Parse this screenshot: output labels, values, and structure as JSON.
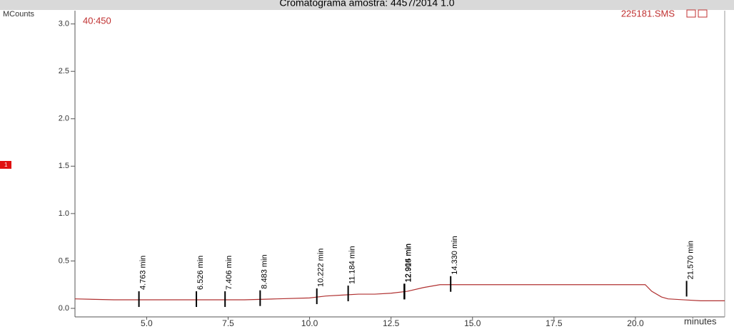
{
  "chart_data": {
    "type": "line",
    "title": "Cromatograma amostra: 4457/2014 1.0",
    "y_label": "MCounts",
    "x_label": "minutes",
    "trace_label": "40:450",
    "file_label": "225181.SMS",
    "marker_label": "1",
    "xlim": [
      2.8,
      22.74
    ],
    "ylim": [
      -0.09,
      3.14
    ],
    "xticks": [
      {
        "value": 5,
        "label": "5.0"
      },
      7.5,
      {
        "value": 10,
        "label": "10.0"
      },
      12.5,
      {
        "value": 15,
        "label": "15.0"
      },
      17.5,
      {
        "value": 20,
        "label": "20.0"
      }
    ],
    "yticks": [
      {
        "value": 0,
        "label": "0.0"
      },
      0.5,
      {
        "value": 1,
        "label": "1.0"
      },
      1.5,
      {
        "value": 2,
        "label": "2.0"
      },
      2.5,
      {
        "value": 3,
        "label": "3.0"
      }
    ],
    "series": [
      {
        "name": "40:450",
        "color": "#b03030",
        "x": [
          2.8,
          4,
          5,
          6,
          7,
          8,
          9,
          10,
          10.5,
          11,
          11.5,
          12,
          12.5,
          13,
          13.5,
          14,
          14.5,
          15,
          16,
          17,
          18,
          19,
          20,
          20.3,
          20.5,
          20.8,
          21,
          21.5,
          22,
          22.74
        ],
        "values": [
          0.1,
          0.09,
          0.09,
          0.09,
          0.09,
          0.09,
          0.1,
          0.11,
          0.13,
          0.14,
          0.15,
          0.15,
          0.16,
          0.18,
          0.22,
          0.25,
          0.25,
          0.25,
          0.25,
          0.25,
          0.25,
          0.25,
          0.25,
          0.25,
          0.18,
          0.12,
          0.1,
          0.09,
          0.08,
          0.08
        ]
      }
    ],
    "peaks": [
      {
        "label": "4.763 min",
        "x": 4.763,
        "y": 0.09
      },
      {
        "label": "6.526 min",
        "x": 6.526,
        "y": 0.09
      },
      {
        "label": "7.406 min",
        "x": 7.406,
        "y": 0.09
      },
      {
        "label": "8.483 min",
        "x": 8.483,
        "y": 0.1
      },
      {
        "label": "10.222 min",
        "x": 10.222,
        "y": 0.12
      },
      {
        "label": "11.184 min",
        "x": 11.184,
        "y": 0.15
      },
      {
        "label": "12.904 min",
        "x": 12.904,
        "y": 0.17
      },
      {
        "label": "12.915 min",
        "x": 12.915,
        "y": 0.17
      },
      {
        "label": "14.330 min",
        "x": 14.33,
        "y": 0.25
      },
      {
        "label": "21.570 min",
        "x": 21.57,
        "y": 0.2
      }
    ]
  }
}
